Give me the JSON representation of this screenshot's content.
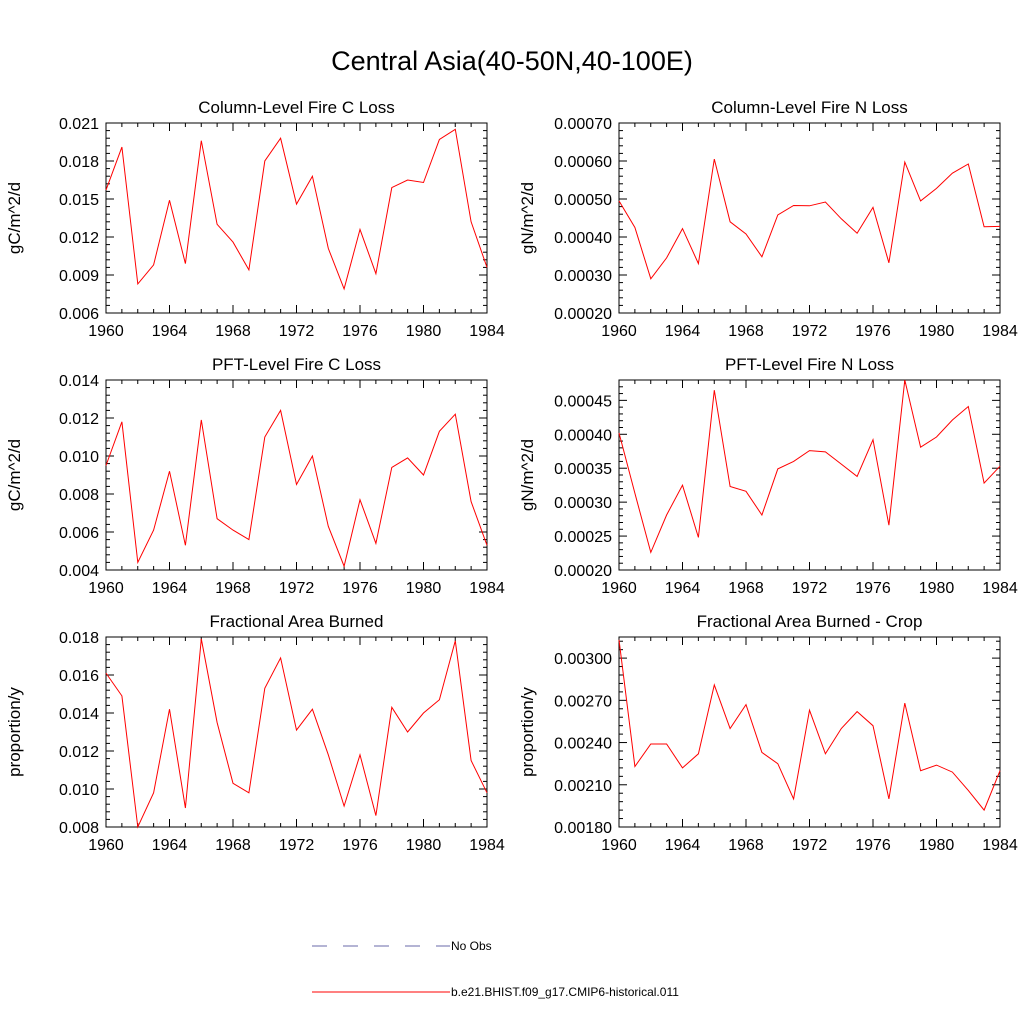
{
  "figure_title": "Central Asia(40-50N,40-100E)",
  "colors": {
    "model": "#ff0000",
    "obs": "#6a6aa8",
    "axis": "#000000"
  },
  "legend": [
    {
      "label": "No Obs",
      "style": "dashed",
      "color": "#6a6aa8"
    },
    {
      "label": "b.e21.BHIST.f09_g17.CMIP6-historical.011",
      "style": "solid",
      "color": "#ff0000"
    }
  ],
  "chart_data": [
    {
      "type": "line",
      "title": "Column-Level Fire C Loss",
      "ylabel": "gC/m^2/d",
      "xlim": [
        1960,
        1984
      ],
      "ylim": [
        0.006,
        0.021
      ],
      "xticks": [
        "1960",
        "1964",
        "1968",
        "1972",
        "1976",
        "1980",
        "1984"
      ],
      "yticks": [
        "0.006",
        "0.009",
        "0.012",
        "0.015",
        "0.018",
        "0.021"
      ],
      "series": [
        {
          "name": "b.e21.BHIST.f09_g17.CMIP6-historical.011",
          "x": [
            1960,
            1961,
            1962,
            1963,
            1964,
            1965,
            1966,
            1967,
            1968,
            1969,
            1970,
            1971,
            1972,
            1973,
            1974,
            1975,
            1976,
            1977,
            1978,
            1979,
            1980,
            1981,
            1982,
            1983,
            1984
          ],
          "y": [
            0.0157,
            0.0191,
            0.0083,
            0.0098,
            0.0149,
            0.0099,
            0.0196,
            0.013,
            0.0116,
            0.0094,
            0.018,
            0.0198,
            0.0146,
            0.0168,
            0.0111,
            0.0079,
            0.0126,
            0.0091,
            0.0159,
            0.0165,
            0.0163,
            0.0197,
            0.0205,
            0.0132,
            0.0096
          ]
        }
      ]
    },
    {
      "type": "line",
      "title": "Column-Level Fire N Loss",
      "ylabel": "gN/m^2/d",
      "xlim": [
        1960,
        1984
      ],
      "ylim": [
        0.0002,
        0.0007
      ],
      "xticks": [
        "1960",
        "1964",
        "1968",
        "1972",
        "1976",
        "1980",
        "1984"
      ],
      "yticks": [
        "0.00020",
        "0.00030",
        "0.00040",
        "0.00050",
        "0.00060",
        "0.00070"
      ],
      "series": [
        {
          "name": "b.e21.BHIST.f09_g17.CMIP6-historical.011",
          "x": [
            1960,
            1961,
            1962,
            1963,
            1964,
            1965,
            1966,
            1967,
            1968,
            1969,
            1970,
            1971,
            1972,
            1973,
            1974,
            1975,
            1976,
            1977,
            1978,
            1979,
            1980,
            1981,
            1982,
            1983,
            1984
          ],
          "y": [
            0.000495,
            0.000425,
            0.00029,
            0.000345,
            0.000422,
            0.00033,
            0.000605,
            0.00044,
            0.000408,
            0.000348,
            0.000458,
            0.000483,
            0.000482,
            0.000492,
            0.000448,
            0.00041,
            0.000478,
            0.000332,
            0.000597,
            0.000495,
            0.000528,
            0.000568,
            0.000592,
            0.000427,
            0.000428
          ]
        }
      ]
    },
    {
      "type": "line",
      "title": "PFT-Level Fire C Loss",
      "ylabel": "gC/m^2/d",
      "xlim": [
        1960,
        1984
      ],
      "ylim": [
        0.004,
        0.014
      ],
      "xticks": [
        "1960",
        "1964",
        "1968",
        "1972",
        "1976",
        "1980",
        "1984"
      ],
      "yticks": [
        "0.004",
        "0.006",
        "0.008",
        "0.010",
        "0.012",
        "0.014"
      ],
      "series": [
        {
          "name": "b.e21.BHIST.f09_g17.CMIP6-historical.011",
          "x": [
            1960,
            1961,
            1962,
            1963,
            1964,
            1965,
            1966,
            1967,
            1968,
            1969,
            1970,
            1971,
            1972,
            1973,
            1974,
            1975,
            1976,
            1977,
            1978,
            1979,
            1980,
            1981,
            1982,
            1983,
            1984
          ],
          "y": [
            0.0095,
            0.0118,
            0.0044,
            0.0061,
            0.0092,
            0.0053,
            0.0119,
            0.0067,
            0.0061,
            0.0056,
            0.011,
            0.0124,
            0.0085,
            0.01,
            0.0063,
            0.0042,
            0.0077,
            0.0054,
            0.0094,
            0.0099,
            0.009,
            0.0113,
            0.0122,
            0.0076,
            0.0053
          ]
        }
      ]
    },
    {
      "type": "line",
      "title": "PFT-Level Fire N Loss",
      "ylabel": "gN/m^2/d",
      "xlim": [
        1960,
        1984
      ],
      "ylim": [
        0.0002,
        0.00048
      ],
      "xticks": [
        "1960",
        "1964",
        "1968",
        "1972",
        "1976",
        "1980",
        "1984"
      ],
      "yticks": [
        "0.00020",
        "0.00025",
        "0.00030",
        "0.00035",
        "0.00040",
        "0.00045"
      ],
      "series": [
        {
          "name": "b.e21.BHIST.f09_g17.CMIP6-historical.011",
          "x": [
            1960,
            1961,
            1962,
            1963,
            1964,
            1965,
            1966,
            1967,
            1968,
            1969,
            1970,
            1971,
            1972,
            1973,
            1974,
            1975,
            1976,
            1977,
            1978,
            1979,
            1980,
            1981,
            1982,
            1983,
            1984
          ],
          "y": [
            0.000402,
            0.000313,
            0.000226,
            0.000281,
            0.000325,
            0.000248,
            0.000465,
            0.000323,
            0.000316,
            0.000281,
            0.000349,
            0.00036,
            0.000376,
            0.000374,
            0.000356,
            0.000338,
            0.000392,
            0.000266,
            0.00048,
            0.000381,
            0.000396,
            0.000421,
            0.000441,
            0.000328,
            0.000353
          ]
        }
      ]
    },
    {
      "type": "line",
      "title": "Fractional Area Burned",
      "ylabel": "proportion/y",
      "xlim": [
        1960,
        1984
      ],
      "ylim": [
        0.008,
        0.018
      ],
      "xticks": [
        "1960",
        "1964",
        "1968",
        "1972",
        "1976",
        "1980",
        "1984"
      ],
      "yticks": [
        "0.008",
        "0.010",
        "0.012",
        "0.014",
        "0.016",
        "0.018"
      ],
      "series": [
        {
          "name": "b.e21.BHIST.f09_g17.CMIP6-historical.011",
          "x": [
            1960,
            1961,
            1962,
            1963,
            1964,
            1965,
            1966,
            1967,
            1968,
            1969,
            1970,
            1971,
            1972,
            1973,
            1974,
            1975,
            1976,
            1977,
            1978,
            1979,
            1980,
            1981,
            1982,
            1983,
            1984
          ],
          "y": [
            0.0161,
            0.0149,
            0.008,
            0.0098,
            0.0142,
            0.009,
            0.0179,
            0.0135,
            0.0103,
            0.0098,
            0.0153,
            0.0169,
            0.0131,
            0.0142,
            0.0118,
            0.0091,
            0.0118,
            0.0086,
            0.0143,
            0.013,
            0.014,
            0.0147,
            0.0178,
            0.0115,
            0.0098
          ]
        }
      ]
    },
    {
      "type": "line",
      "title": "Fractional Area Burned - Crop",
      "ylabel": "proportion/y",
      "xlim": [
        1960,
        1984
      ],
      "ylim": [
        0.0018,
        0.00315
      ],
      "xticks": [
        "1960",
        "1964",
        "1968",
        "1972",
        "1976",
        "1980",
        "1984"
      ],
      "yticks": [
        "0.00180",
        "0.00210",
        "0.00240",
        "0.00270",
        "0.00300"
      ],
      "series": [
        {
          "name": "b.e21.BHIST.f09_g17.CMIP6-historical.011",
          "x": [
            1960,
            1961,
            1962,
            1963,
            1964,
            1965,
            1966,
            1967,
            1968,
            1969,
            1970,
            1971,
            1972,
            1973,
            1974,
            1975,
            1976,
            1977,
            1978,
            1979,
            1980,
            1981,
            1982,
            1983,
            1984
          ],
          "y": [
            0.00313,
            0.00223,
            0.00239,
            0.00239,
            0.00222,
            0.00232,
            0.00281,
            0.0025,
            0.00267,
            0.00233,
            0.00225,
            0.002,
            0.00263,
            0.00232,
            0.0025,
            0.00262,
            0.00252,
            0.002,
            0.00268,
            0.0022,
            0.00224,
            0.00219,
            0.00206,
            0.00192,
            0.0022
          ]
        }
      ]
    }
  ]
}
